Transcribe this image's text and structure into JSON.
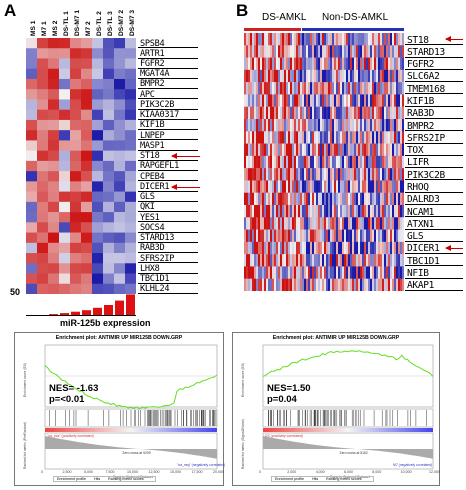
{
  "panel_a": {
    "letter": "A",
    "columns": [
      "MS 1",
      "M7 1",
      "MS 2",
      "DS-TL 1",
      "DS-M7 1",
      "M7 2",
      "DS-TL 2",
      "DS-TL 3",
      "DS-M7 2",
      "DS-M7 3"
    ],
    "genes": [
      "SPSB4",
      "ARTR1",
      "FGFR2",
      "MGAT4A",
      "BMPR2",
      "APC",
      "PIK3C2B",
      "KIAA0317",
      "KIF1B",
      "LNPEP",
      "MASP1",
      "ST18",
      "RAPGEFL1",
      "CPEB4",
      "DICER1",
      "GLS",
      "QKI",
      "YES1",
      "SOCS4",
      "STARD13",
      "RAB3D",
      "SFRS2IP",
      "LHX8",
      "TBC1D1",
      "KLHL24"
    ],
    "arrow_genes": [
      "ST18",
      "DICER1"
    ],
    "expression_label": "miR-125b expression",
    "expression_axis_max": "50",
    "expression_values": [
      1,
      2,
      4,
      6,
      9,
      12,
      17,
      23,
      32,
      45
    ],
    "enrichment": {
      "title": "Enrichment plot: ANTIMIR UP MIR125B DOWN.GRP",
      "nes": "NES= -1.63",
      "p": "p=<0.01",
      "y_label": "Enrichment score (ES)",
      "y2_label": "Ranked list metric (PreRanked)",
      "x_label": "Rank in Ordered Dataset",
      "pos_label": "\"na_pos\" (positively correlated)",
      "neg_label": "\"na_neg\" (negatively correlated)",
      "zero_label": "Zero cross at 9209",
      "legend": [
        "Enrichment profile",
        "Hits",
        "Ranking metric scores"
      ],
      "x_ticks": [
        "0",
        "2,500",
        "5,000",
        "7,500",
        "10,000",
        "12,500",
        "15,000",
        "17,500",
        "20,000"
      ]
    }
  },
  "panel_b": {
    "letter": "B",
    "group1": "DS-AMKL",
    "group2": "Non-DS-AMKL",
    "group1_color": "#cc2222",
    "group2_color": "#2233bb",
    "genes": [
      "ST18",
      "STARD13",
      "FGFR2",
      "SLC6A2",
      "TMEM168",
      "KIF1B",
      "RAB3D",
      "BMPR2",
      "SFRS2IP",
      "TOX",
      "LIFR",
      "PIK3C2B",
      "RHOQ",
      "DALRD3",
      "NCAM1",
      "ATXN1",
      "GLS",
      "DICER1",
      "TBC1D1",
      "NFIB",
      "AKAP1"
    ],
    "arrow_genes": [
      "ST18",
      "DICER1"
    ],
    "enrichment": {
      "title": "Enrichment plot: ANTIMIR UP MIR125B DOWN.GRP",
      "nes": "NES=1.50",
      "p": "p=0.04",
      "y_label": "Enrichment score (ES)",
      "y2_label": "Ranked list metric (Signal2Noise)",
      "x_label": "Rank in Ordered Dataset",
      "pos_label": "DS (positively correlated)",
      "neg_label": "M7 (negatively correlated)",
      "zero_label": "Zero cross at 5162",
      "legend": [
        "Enrichment profile",
        "Hits",
        "Ranking metric scores"
      ],
      "x_ticks": [
        "0",
        "2,000",
        "4,000",
        "6,000",
        "8,000",
        "10,000",
        "12,000"
      ]
    }
  },
  "colors": {
    "high": "#cc1111",
    "low": "#1a1aa8",
    "mid": "#f2f2f2",
    "es_line": "#66dd22",
    "bars": "#dd1111"
  }
}
